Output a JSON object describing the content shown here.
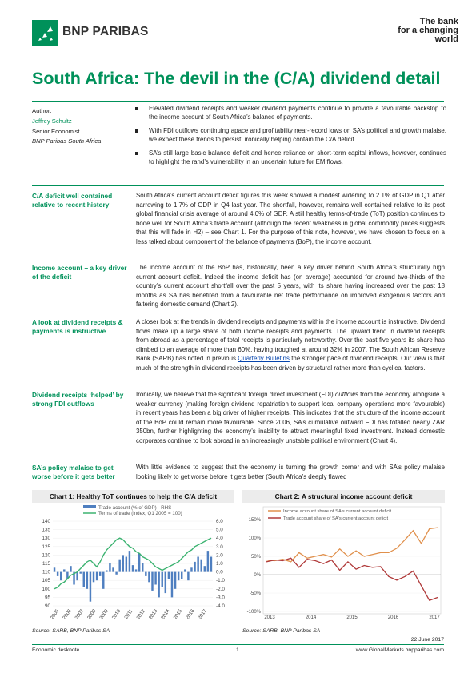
{
  "header": {
    "brand": "BNP PARIBAS",
    "tagline": [
      "The bank",
      "for a changing",
      "world"
    ]
  },
  "title": "South Africa: The devil in the (C/A) dividend detail",
  "author": {
    "label": "Author:",
    "name": "Jeffrey Schultz",
    "role": "Senior Economist",
    "org": "BNP Paribas South Africa"
  },
  "bullets": [
    "Elevated dividend receipts and weaker dividend payments continue to provide a favourable backstop to the income account of South Africa’s balance of payments.",
    "With FDI outflows continuing apace and profitability near-record lows on SA’s political and growth malaise, we expect these trends to persist, ironically helping contain the C/A deficit.",
    "SA’s still large basic balance deficit and hence reliance on short-term capital inflows, however, continues to highlight the rand’s vulnerability in an uncertain future for EM flows."
  ],
  "sections": [
    {
      "side": "C/A deficit well contained relative to recent history",
      "text": "South Africa’s current account deficit figures this week showed a modest widening to 2.1% of GDP in Q1 after narrowing to 1.7% of GDP in Q4 last year. The shortfall, however, remains well contained relative to its post global financial crisis average of around 4.0% of GDP. A still healthy terms-of-trade (ToT) position continues to bode well for South Africa’s trade account (although the recent weakness in global commodity prices suggests that this will fade in H2) – see Chart 1. For the purpose of this note, however, we have chosen to focus on a less talked about component of the balance of payments (BoP), the income account."
    },
    {
      "side": "Income account – a key driver of the deficit",
      "text": "The income account of the BoP has, historically, been a key driver behind South Africa’s structurally high current account deficit. Indeed the income deficit has (on average) accounted for around two-thirds of the country’s current account shortfall over the past 5 years, with its share having increased over the past 18 months as SA has benefited from a favourable net trade performance on improved exogenous factors and faltering domestic demand (Chart 2)."
    },
    {
      "side": "A look at dividend receipts & payments is instructive",
      "text_a": "A closer look at the trends in dividend receipts and payments within the income account is instructive. Dividend flows make up a large share of both income receipts and payments. The upward trend in dividend receipts from abroad as a percentage of total receipts is particularly noteworthy. Over the past five years its share has climbed to an average of more than 60%, having troughed at around 32% in 2007. The South African Reserve Bank (SARB) has noted in previous ",
      "link": "Quarterly Bulletins",
      "text_b": " the stronger pace of dividend receipts. Our view is that much of the strength in dividend receipts has been driven by structural rather more than cyclical factors."
    },
    {
      "side": "Dividend receipts ‘helped’ by strong FDI outflows",
      "text_a": "Ironically, we believe that the significant foreign direct investment (FDI) ",
      "emph": "outflows",
      "text_b": " from the economy alongside a weaker currency (making foreign dividend repatriation to support local company operations more favourable) in recent years has been a big driver of higher receipts. This indicates that the structure of the income account of the BoP could remain more favourable. Since 2006, SA’s cumulative outward FDI has totalled nearly ZAR 350bn, further highlighting the economy’s inability to attract meaningful fixed investment. Instead domestic corporates continue to look abroad in an increasingly unstable political environment (Chart 4)."
    },
    {
      "side": "SA’s policy malaise to get worse before it gets better",
      "text": "With little evidence to suggest that the economy is turning the growth corner and with SA’s policy malaise looking likely to get worse before it gets better (South Africa’s deeply flawed"
    }
  ],
  "chart_data": [
    {
      "type": "bar",
      "title": "Chart 1: Healthy ToT continues to help the C/A deficit",
      "legend": [
        "Trade account (% of GDP) - RHS",
        "Terms of trade (index, Q1 2005 = 100)"
      ],
      "left_ticks": [
        140,
        135,
        130,
        125,
        120,
        115,
        110,
        105,
        100,
        95,
        90
      ],
      "right_ticks": [
        "6.0",
        "5.0",
        "4.0",
        "3.0",
        "2.0",
        "1.0",
        "0.0",
        "-1.0",
        "-2.0",
        "-3.0",
        "-4.0"
      ],
      "x_ticks": [
        "2005",
        "2006",
        "2007",
        "2008",
        "2009",
        "2010",
        "2011",
        "2012",
        "2013",
        "2014",
        "2015",
        "2016",
        "2017"
      ],
      "ylim_left": [
        90,
        140
      ],
      "ylim_right": [
        -4,
        6
      ],
      "colors": {
        "bars": "#4f7fc0",
        "line": "#3cb371"
      },
      "series": [
        {
          "name": "Trade account (% of GDP) - RHS",
          "values": [
            0.5,
            -0.5,
            -1.0,
            0.3,
            -0.8,
            0.7,
            -1.5,
            -1.0,
            -0.2,
            -1.8,
            -2.0,
            -3.5,
            -1.2,
            -1.0,
            -0.5,
            -2.0,
            0.2,
            1.0,
            0.5,
            -0.3,
            1.5,
            2.0,
            1.8,
            2.5,
            0.8,
            0.3,
            2.2,
            1.0,
            -0.5,
            -1.2,
            -2.2,
            -1.5,
            -3.0,
            -1.8,
            -2.5,
            -0.8,
            -3.0,
            -2.0,
            -1.0,
            -0.8,
            0.3,
            -1.0,
            0.5,
            1.2,
            1.8,
            1.5,
            0.7,
            2.5,
            1.8
          ]
        },
        {
          "name": "Terms of trade (index, Q1 2005 = 100)",
          "values": [
            100,
            101,
            103,
            104,
            106,
            108,
            109,
            110,
            112,
            114,
            116,
            117,
            115,
            113,
            116,
            120,
            123,
            125,
            127,
            129,
            130,
            129,
            127,
            125,
            124,
            122,
            121,
            119,
            118,
            117,
            115,
            113,
            112,
            111,
            112,
            113,
            114,
            115,
            116,
            118,
            120,
            122,
            123,
            125,
            126,
            127,
            128,
            129,
            130
          ]
        }
      ],
      "source": "Source: SARB, BNP Paribas SA"
    },
    {
      "type": "line",
      "title": "Chart 2: A structural income account deficit",
      "legend": [
        "Income account share of SA's current account deficit",
        "Trade account share of SA's current account deficit"
      ],
      "left_ticks": [
        "150%",
        "100%",
        "50%",
        "0%",
        "-50%",
        "-100%"
      ],
      "x_ticks": [
        "2013",
        "2014",
        "2015",
        "2016",
        "2017"
      ],
      "ylim": [
        -100,
        150
      ],
      "colors": {
        "income": "#e0904c",
        "trade": "#b03a3a"
      },
      "series": [
        {
          "name": "Income account share of SA's current account deficit",
          "values": [
            40,
            38,
            42,
            35,
            60,
            45,
            50,
            55,
            48,
            70,
            50,
            65,
            50,
            55,
            60,
            60,
            72,
            95,
            120,
            85,
            125,
            128
          ]
        },
        {
          "name": "Trade account share of SA's current account deficit",
          "values": [
            35,
            40,
            38,
            45,
            20,
            42,
            38,
            30,
            40,
            12,
            35,
            15,
            25,
            20,
            22,
            -5,
            -15,
            -5,
            10,
            -30,
            -70,
            -62
          ]
        }
      ],
      "source": "Source: SARB, BNP Paribas SA"
    }
  ],
  "footer": {
    "date": "22 June 2017",
    "left": "Economic desknote",
    "page": "1",
    "right": "www.GlobalMarkets.bnpparibas.com"
  }
}
